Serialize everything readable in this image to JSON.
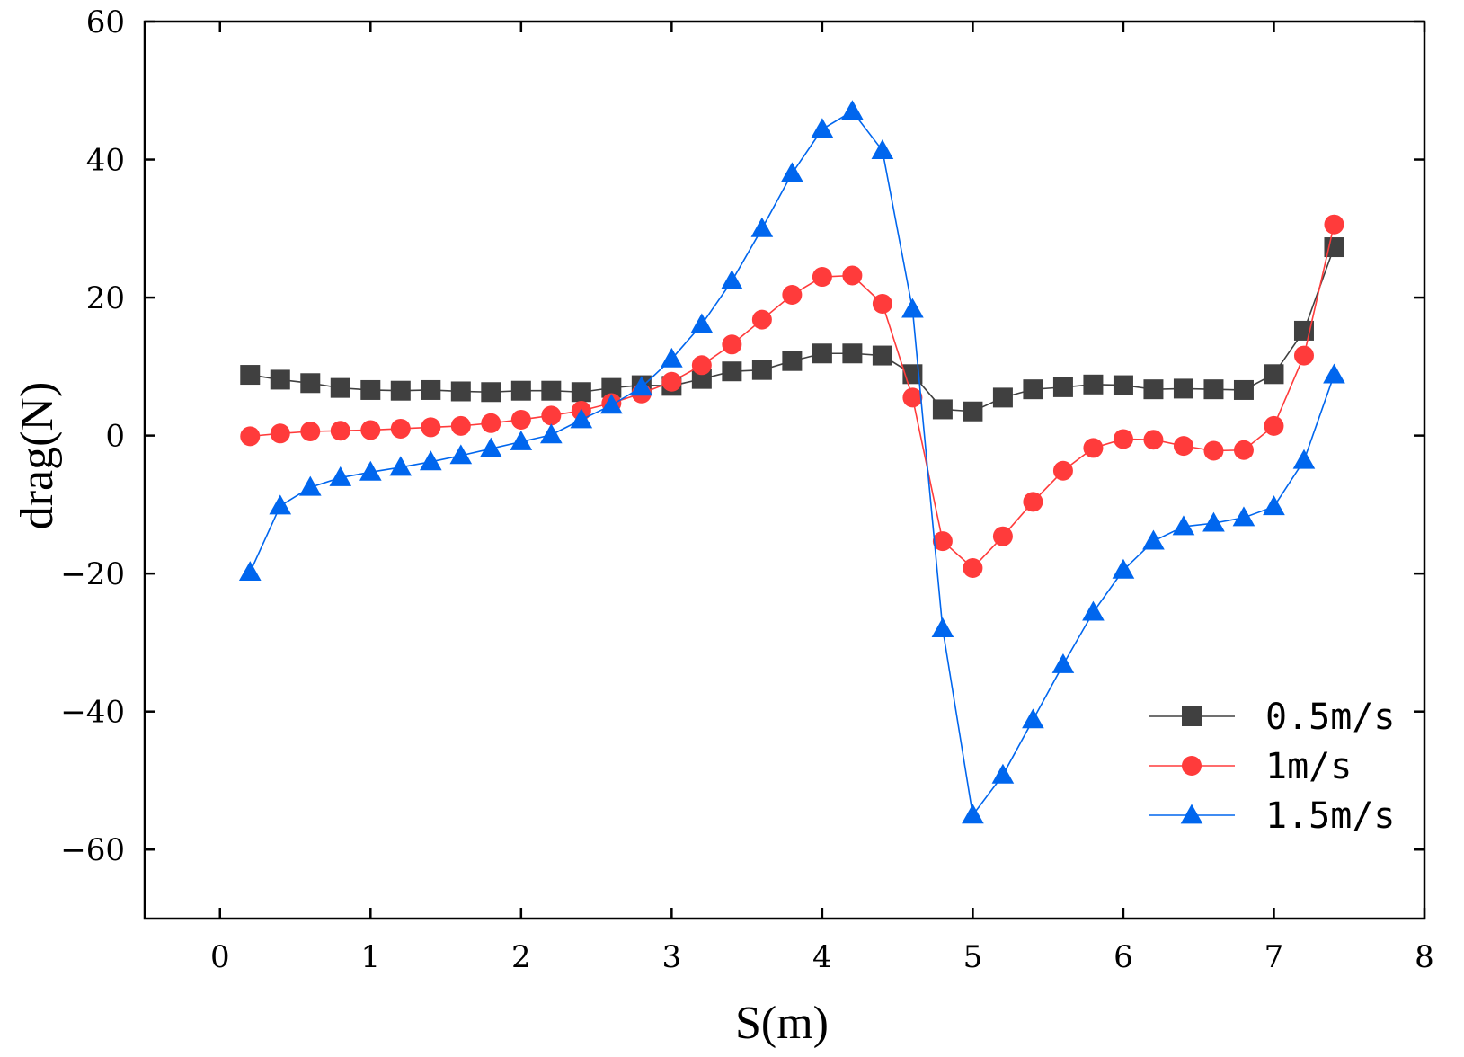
{
  "chart_data": {
    "type": "line",
    "title": "",
    "xlabel": "S(m)",
    "ylabel": "drag(N)",
    "xlim": [
      -0.5,
      8
    ],
    "ylim": [
      -70,
      60
    ],
    "xticks": [
      0,
      1,
      2,
      3,
      4,
      5,
      6,
      7,
      8
    ],
    "yticks": [
      -60,
      -40,
      -20,
      0,
      20,
      40,
      60
    ],
    "xtick_labels": [
      "0",
      "1",
      "2",
      "3",
      "4",
      "5",
      "6",
      "7",
      "8"
    ],
    "ytick_labels": [
      "−60",
      "−40",
      "−20",
      "0",
      "20",
      "40",
      "60"
    ],
    "grid": false,
    "legend_position": "bottom-right",
    "x": [
      0.2,
      0.4,
      0.6,
      0.8,
      1.0,
      1.2,
      1.4,
      1.6,
      1.8,
      2.0,
      2.2,
      2.4,
      2.6,
      2.8,
      3.0,
      3.2,
      3.4,
      3.6,
      3.8,
      4.0,
      4.2,
      4.4,
      4.6,
      4.8,
      5.0,
      5.2,
      5.4,
      5.6,
      5.8,
      6.0,
      6.2,
      6.4,
      6.6,
      6.8,
      7.0,
      7.2,
      7.4
    ],
    "series": [
      {
        "name": "0.5m/s",
        "color": "#404040",
        "marker": "square",
        "values": [
          8.8,
          8.1,
          7.6,
          6.9,
          6.6,
          6.5,
          6.6,
          6.4,
          6.3,
          6.5,
          6.5,
          6.3,
          6.9,
          7.3,
          7.2,
          8.2,
          9.3,
          9.5,
          10.8,
          11.9,
          11.9,
          11.6,
          8.9,
          3.8,
          3.5,
          5.5,
          6.7,
          7.0,
          7.4,
          7.3,
          6.7,
          6.8,
          6.7,
          6.6,
          8.9,
          15.2,
          27.3
        ]
      },
      {
        "name": "1m/s",
        "color": "#ff3b3b",
        "marker": "circle",
        "values": [
          -0.1,
          0.3,
          0.6,
          0.7,
          0.8,
          1.0,
          1.2,
          1.4,
          1.8,
          2.3,
          2.9,
          3.6,
          4.7,
          6.1,
          7.8,
          10.2,
          13.2,
          16.8,
          20.4,
          23.0,
          23.2,
          19.1,
          5.5,
          -15.3,
          -19.2,
          -14.6,
          -9.6,
          -5.1,
          -1.8,
          -0.5,
          -0.6,
          -1.5,
          -2.2,
          -2.1,
          1.4,
          11.6,
          30.6
        ]
      },
      {
        "name": "1.5m/s",
        "color": "#0066ee",
        "marker": "triangle",
        "values": [
          -19.8,
          -10.2,
          -7.5,
          -6.1,
          -5.3,
          -4.6,
          -3.8,
          -2.9,
          -1.9,
          -0.9,
          0.1,
          2.3,
          4.4,
          7.0,
          11.1,
          16.1,
          22.4,
          30.0,
          38.0,
          44.4,
          47.0,
          41.3,
          18.3,
          -28.0,
          -55.0,
          -49.2,
          -41.2,
          -33.2,
          -25.6,
          -19.5,
          -15.3,
          -13.2,
          -12.7,
          -11.9,
          -10.3,
          -3.6,
          8.8
        ]
      }
    ]
  }
}
